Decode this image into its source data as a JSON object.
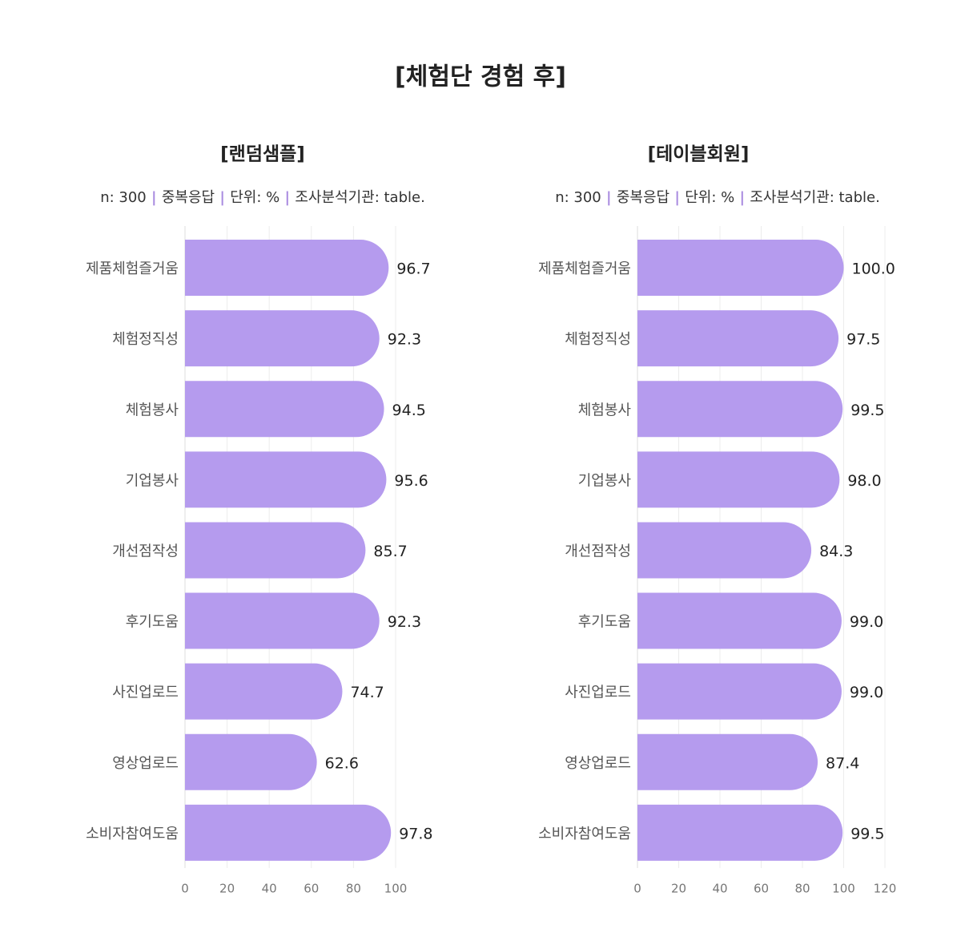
{
  "title": "[체험단 경험 후]",
  "chart_data": [
    {
      "type": "bar",
      "orientation": "horizontal",
      "title": "[랜덤샘플]",
      "notes": [
        "n: 300",
        "중복응답",
        "단위: %",
        "조사분석기관: table."
      ],
      "categories": [
        "제품체험즐거움",
        "체험정직성",
        "체험봉사",
        "기업봉사",
        "개선점작성",
        "후기도움",
        "사진업로드",
        "영상업로드",
        "소비자참여도움"
      ],
      "values": [
        96.7,
        92.3,
        94.5,
        95.6,
        85.7,
        92.3,
        74.7,
        62.6,
        97.8
      ],
      "color": "#b59bee",
      "xlim": [
        0,
        100
      ],
      "xticks": [
        0,
        20,
        40,
        60,
        80,
        100
      ],
      "grid": true
    },
    {
      "type": "bar",
      "orientation": "horizontal",
      "title": "[테이블회원]",
      "notes": [
        "n: 300",
        "중복응답",
        "단위: %",
        "조사분석기관: table."
      ],
      "categories": [
        "제품체험즐거움",
        "체험정직성",
        "체험봉사",
        "기업봉사",
        "개선점작성",
        "후기도움",
        "사진업로드",
        "영상업로드",
        "소비자참여도움"
      ],
      "values": [
        100,
        97.5,
        99.5,
        98,
        84.3,
        99,
        99,
        87.4,
        99.5
      ],
      "value_labels": [
        "100.0",
        "97.5",
        "99.5",
        "98.0",
        "84.3",
        "99.0",
        "99.0",
        "87.4",
        "99.5"
      ],
      "color": "#b59bee",
      "xlim": [
        0,
        120
      ],
      "xticks": [
        0,
        20,
        40,
        60,
        80,
        100,
        120
      ],
      "grid": true
    }
  ]
}
